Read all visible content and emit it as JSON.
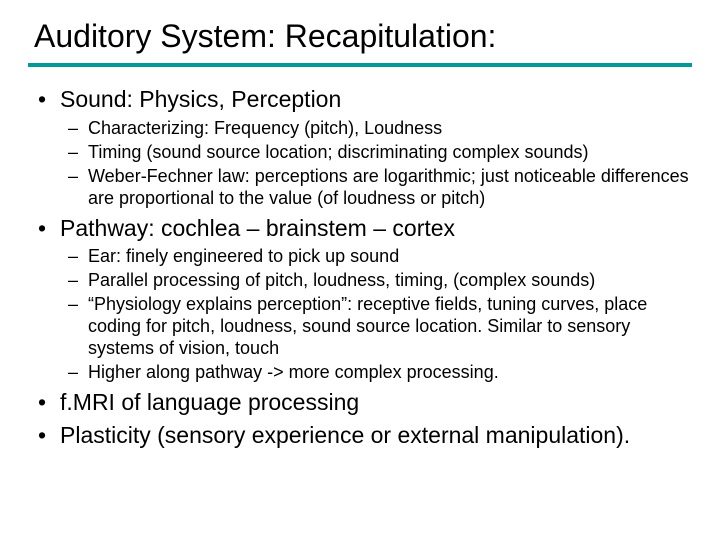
{
  "title": "Auditory System: Recapitulation:",
  "colors": {
    "rule": "#009999",
    "text": "#000000",
    "background": "#ffffff"
  },
  "typography": {
    "title_fontsize": 32,
    "level1_fontsize": 23,
    "level2_fontsize": 18,
    "font_family": "Arial"
  },
  "bullets": [
    {
      "text": "Sound: Physics, Perception",
      "sub": [
        "Characterizing: Frequency (pitch), Loudness",
        "Timing (sound source location; discriminating complex sounds)",
        "Weber-Fechner law: perceptions are logarithmic; just noticeable differences are proportional to the value (of loudness or pitch)"
      ]
    },
    {
      "text": "Pathway: cochlea – brainstem – cortex",
      "sub": [
        "Ear: finely engineered to pick up sound",
        "Parallel processing of pitch, loudness, timing, (complex sounds)",
        "“Physiology explains perception”: receptive fields, tuning curves, place coding for pitch, loudness, sound source location. Similar to sensory systems of vision, touch",
        "Higher along pathway -> more complex processing."
      ]
    },
    {
      "text": "f.MRI of language processing",
      "sub": []
    },
    {
      "text": "Plasticity (sensory experience or external manipulation).",
      "sub": []
    }
  ]
}
